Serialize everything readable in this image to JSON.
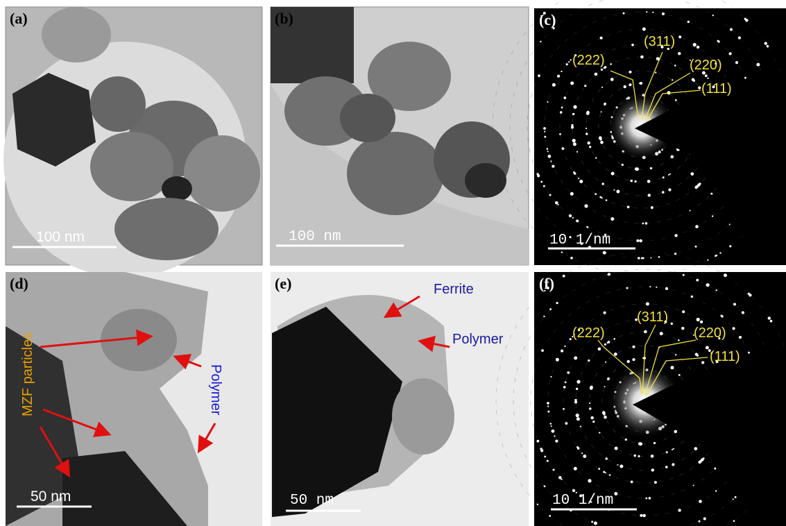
{
  "panels": [
    {
      "label": "(a)",
      "scale_bar": "100 nm"
    },
    {
      "label": "(b)",
      "scale_bar": "100 nm"
    },
    {
      "label": "(c)",
      "scale_bar": "10 1/nm",
      "annotations": [
        "(222)",
        "(311)",
        "(220)",
        "(111)"
      ]
    },
    {
      "label": "(d)",
      "scale_bar": "50 nm",
      "annotations": [
        "MZF particles",
        "Polymer"
      ]
    },
    {
      "label": "(e)",
      "scale_bar": "50 nm",
      "annotations": [
        "Ferrite",
        "Polymer"
      ]
    },
    {
      "label": "(f)",
      "scale_bar": "10 1/nm",
      "annotations": [
        "(222)",
        "(311)",
        "(220)",
        "(111)"
      ]
    }
  ]
}
